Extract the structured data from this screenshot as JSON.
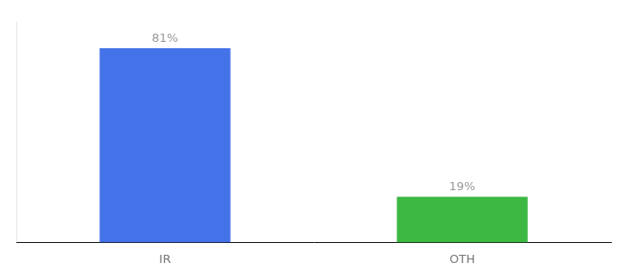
{
  "chart_data": {
    "type": "bar",
    "categories": [
      "IR",
      "OTH"
    ],
    "values": [
      81,
      19
    ],
    "value_labels": [
      "81%",
      "19%"
    ],
    "colors": [
      "#4472e8",
      "#3cb843"
    ],
    "ylim": [
      0,
      92
    ],
    "yticks": [],
    "grid": false,
    "tick_labels": "x",
    "data_labels": true
  }
}
